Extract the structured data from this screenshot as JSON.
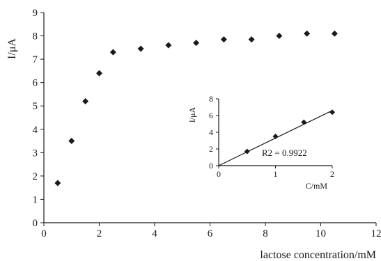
{
  "chart_data": [
    {
      "type": "scatter",
      "title": "",
      "xlabel": "lactose concentration/mM",
      "ylabel": "I/μA",
      "xlim": [
        0,
        12
      ],
      "ylim": [
        0,
        9
      ],
      "xticks": [
        0,
        2,
        4,
        6,
        8,
        10,
        12
      ],
      "yticks": [
        0,
        1,
        2,
        3,
        4,
        5,
        6,
        7,
        8,
        9
      ],
      "grid": false,
      "series": [
        {
          "marker": "diamond",
          "color": "#1a1a1a",
          "x": [
            0.5,
            1.0,
            1.5,
            2.0,
            2.5,
            3.5,
            4.5,
            5.5,
            6.5,
            7.5,
            8.5,
            9.5,
            10.5
          ],
          "y": [
            1.7,
            3.5,
            5.2,
            6.4,
            7.3,
            7.45,
            7.6,
            7.7,
            7.85,
            7.85,
            8.0,
            8.1,
            8.1
          ]
        }
      ]
    },
    {
      "type": "scatter",
      "title": "",
      "xlabel": "C/mM",
      "ylabel": "I/μA",
      "xlim": [
        0,
        2
      ],
      "ylim": [
        0,
        8
      ],
      "xticks": [
        0,
        1,
        2
      ],
      "yticks": [
        0,
        2,
        4,
        6,
        8
      ],
      "grid": false,
      "annotation": "R2 = 0.9922",
      "series": [
        {
          "marker": "diamond",
          "color": "#1a1a1a",
          "x": [
            0.5,
            1.0,
            1.5,
            2.0
          ],
          "y": [
            1.7,
            3.5,
            5.2,
            6.4
          ]
        }
      ],
      "fit_line": {
        "x": [
          0,
          2
        ],
        "y": [
          0,
          6.6
        ]
      }
    }
  ]
}
